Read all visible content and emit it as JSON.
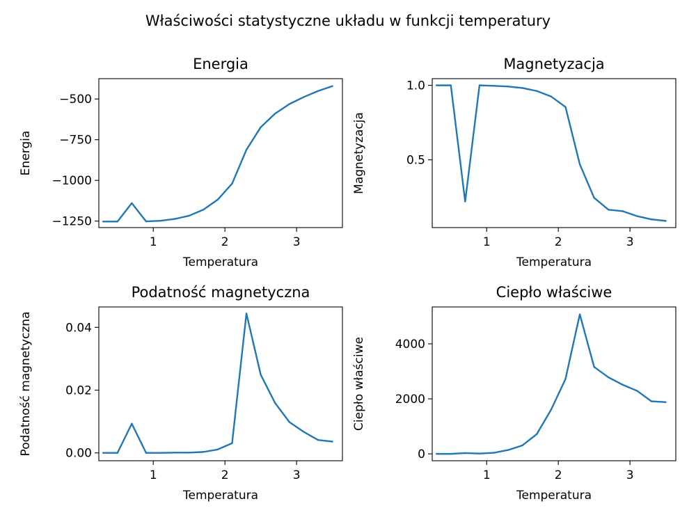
{
  "suptitle": "Właściwości statystyczne układu w funkcji temperatury",
  "colors": {
    "line": "#1f77b4"
  },
  "chart_data": [
    {
      "type": "line",
      "title": "Energia",
      "xlabel": "Temperatura",
      "ylabel": "Energia",
      "xlim": [
        0.24,
        3.64
      ],
      "ylim": [
        -1290,
        -375
      ],
      "xticks": [
        1,
        2,
        3
      ],
      "xtick_labels": [
        "1",
        "2",
        "3"
      ],
      "yticks": [
        -500,
        -750,
        -1000,
        -1250
      ],
      "ytick_labels": [
        "−500",
        "−750",
        "−1000",
        "−1250"
      ],
      "x": [
        0.3,
        0.5,
        0.7,
        0.9,
        1.1,
        1.3,
        1.5,
        1.7,
        1.9,
        2.1,
        2.3,
        2.5,
        2.7,
        2.9,
        3.1,
        3.3,
        3.5
      ],
      "series": [
        {
          "values": [
            -1253,
            -1253,
            -1140,
            -1252,
            -1248,
            -1237,
            -1217,
            -1180,
            -1118,
            -1020,
            -812,
            -673,
            -590,
            -531,
            -488,
            -451,
            -421
          ]
        }
      ],
      "grid": false
    },
    {
      "type": "line",
      "title": "Magnetyzacja",
      "xlabel": "Temperatura",
      "ylabel": "Magnetyzacja",
      "xlim": [
        0.24,
        3.64
      ],
      "ylim": [
        0.045,
        1.045
      ],
      "xticks": [
        1,
        2,
        3
      ],
      "xtick_labels": [
        "1",
        "2",
        "3"
      ],
      "yticks": [
        1.0,
        0.5
      ],
      "ytick_labels": [
        "1.0",
        "0.5"
      ],
      "x": [
        0.3,
        0.5,
        0.7,
        0.9,
        1.1,
        1.3,
        1.5,
        1.7,
        1.9,
        2.1,
        2.3,
        2.5,
        2.7,
        2.9,
        3.1,
        3.3,
        3.5
      ],
      "series": [
        {
          "values": [
            1.0,
            1.0,
            0.22,
            1.0,
            0.997,
            0.992,
            0.982,
            0.962,
            0.925,
            0.855,
            0.47,
            0.245,
            0.165,
            0.155,
            0.122,
            0.1,
            0.09
          ]
        }
      ],
      "grid": false
    },
    {
      "type": "line",
      "title": "Podatność magnetyczna",
      "xlabel": "Temperatura",
      "ylabel": "Podatność magnetyczna",
      "xlim": [
        0.24,
        3.64
      ],
      "ylim": [
        -0.0025,
        0.0465
      ],
      "xticks": [
        1,
        2,
        3
      ],
      "xtick_labels": [
        "1",
        "2",
        "3"
      ],
      "yticks": [
        0.04,
        0.02,
        0.0
      ],
      "ytick_labels": [
        "0.04",
        "0.02",
        "0.00"
      ],
      "x": [
        0.3,
        0.5,
        0.7,
        0.9,
        1.1,
        1.3,
        1.5,
        1.7,
        1.9,
        2.1,
        2.3,
        2.5,
        2.7,
        2.9,
        3.1,
        3.3,
        3.5
      ],
      "series": [
        {
          "values": [
            0.0,
            0.0,
            0.0093,
            0.0,
            0.0,
            0.0001,
            0.0001,
            0.0003,
            0.0011,
            0.0031,
            0.0444,
            0.0249,
            0.0159,
            0.0098,
            0.0067,
            0.0041,
            0.0036
          ]
        }
      ],
      "grid": false
    },
    {
      "type": "line",
      "title": "Ciepło właściwe",
      "xlabel": "Temperatura",
      "ylabel": "Ciepło właściwe",
      "xlim": [
        0.24,
        3.64
      ],
      "ylim": [
        -250,
        5340
      ],
      "xticks": [
        1,
        2,
        3
      ],
      "xtick_labels": [
        "1",
        "2",
        "3"
      ],
      "yticks": [
        4000,
        2000,
        0
      ],
      "ytick_labels": [
        "4000",
        "2000",
        "0"
      ],
      "x": [
        0.3,
        0.5,
        0.7,
        0.9,
        1.1,
        1.3,
        1.5,
        1.7,
        1.9,
        2.1,
        2.3,
        2.5,
        2.7,
        2.9,
        3.1,
        3.3,
        3.5
      ],
      "series": [
        {
          "values": [
            0,
            0,
            30,
            10,
            40,
            140,
            310,
            720,
            1610,
            2720,
            5070,
            3160,
            2780,
            2510,
            2290,
            1910,
            1880
          ]
        }
      ],
      "grid": false
    }
  ]
}
